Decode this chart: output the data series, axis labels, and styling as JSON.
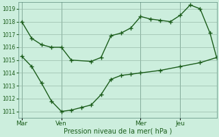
{
  "background_color": "#cceedd",
  "grid_color": "#99bbaa",
  "line_color": "#1a5c1a",
  "marker_color": "#1a5c1a",
  "xlabel": "Pression niveau de la mer( hPa )",
  "ylim": [
    1010.5,
    1019.5
  ],
  "yticks": [
    1011,
    1012,
    1013,
    1014,
    1015,
    1016,
    1017,
    1018,
    1019
  ],
  "day_labels": [
    "Mar",
    "Ven",
    "Mer",
    "Jeu"
  ],
  "day_positions": [
    0,
    24,
    72,
    96
  ],
  "xlim": [
    -2,
    118
  ],
  "series1_x": [
    0,
    6,
    12,
    18,
    24,
    30,
    42,
    48,
    54,
    60,
    66,
    72,
    78,
    84,
    90,
    96,
    102,
    108,
    114,
    118
  ],
  "series1_y": [
    1018.0,
    1016.7,
    1016.2,
    1016.0,
    1016.0,
    1015.0,
    1014.9,
    1015.2,
    1016.9,
    1017.1,
    1017.5,
    1018.4,
    1018.2,
    1018.1,
    1018.0,
    1018.5,
    1019.3,
    1019.0,
    1017.1,
    1015.2
  ],
  "series2_x": [
    0,
    6,
    12,
    18,
    24,
    30,
    36,
    42,
    48,
    54,
    60,
    66,
    72,
    84,
    96,
    108,
    118
  ],
  "series2_y": [
    1015.3,
    1014.5,
    1013.2,
    1011.8,
    1011.0,
    1011.1,
    1011.3,
    1011.5,
    1012.3,
    1013.5,
    1013.8,
    1013.9,
    1014.0,
    1014.2,
    1014.5,
    1014.8,
    1015.2
  ]
}
